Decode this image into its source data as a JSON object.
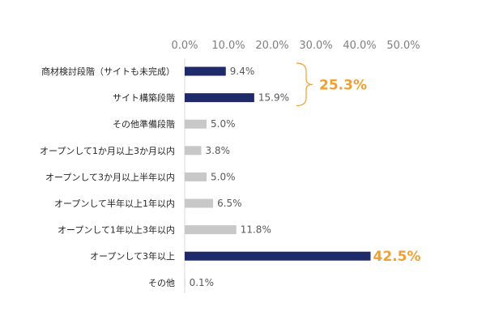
{
  "chart_data": {
    "type": "bar",
    "orientation": "horizontal",
    "title": "",
    "xlabel": "",
    "ylabel": "",
    "xlim": [
      0,
      50
    ],
    "x_ticks": [
      "0.0%",
      "10.0%",
      "20.0%",
      "30.0%",
      "40.0%",
      "50.0%"
    ],
    "grid": false,
    "legend": "none",
    "categories": [
      "商材検討段階（サイトも未完成）",
      "サイト構築段階",
      "その他準備段階",
      "オープンして1か月以上3か月以内",
      "オープンして3か月以上半年以内",
      "オープンして半年以上1年以内",
      "オープンして1年以上3年以内",
      "オープンして3年以上",
      "その他"
    ],
    "values": [
      9.4,
      15.9,
      5.0,
      3.8,
      5.0,
      6.5,
      11.8,
      42.5,
      0.1
    ],
    "value_labels": [
      "9.4%",
      "15.9%",
      "5.0%",
      "3.8%",
      "5.0%",
      "6.5%",
      "11.8%",
      "42.5%",
      "0.1%"
    ],
    "highlighted": [
      true,
      true,
      false,
      false,
      false,
      false,
      false,
      true,
      false
    ],
    "group_bracket": {
      "from_index": 0,
      "to_index": 1,
      "label": "25.3%"
    },
    "colors": {
      "highlight": "#1f2a6b",
      "normal": "#c8c8c8",
      "accent": "#f0a030",
      "axis": "#d9d9d9"
    }
  }
}
